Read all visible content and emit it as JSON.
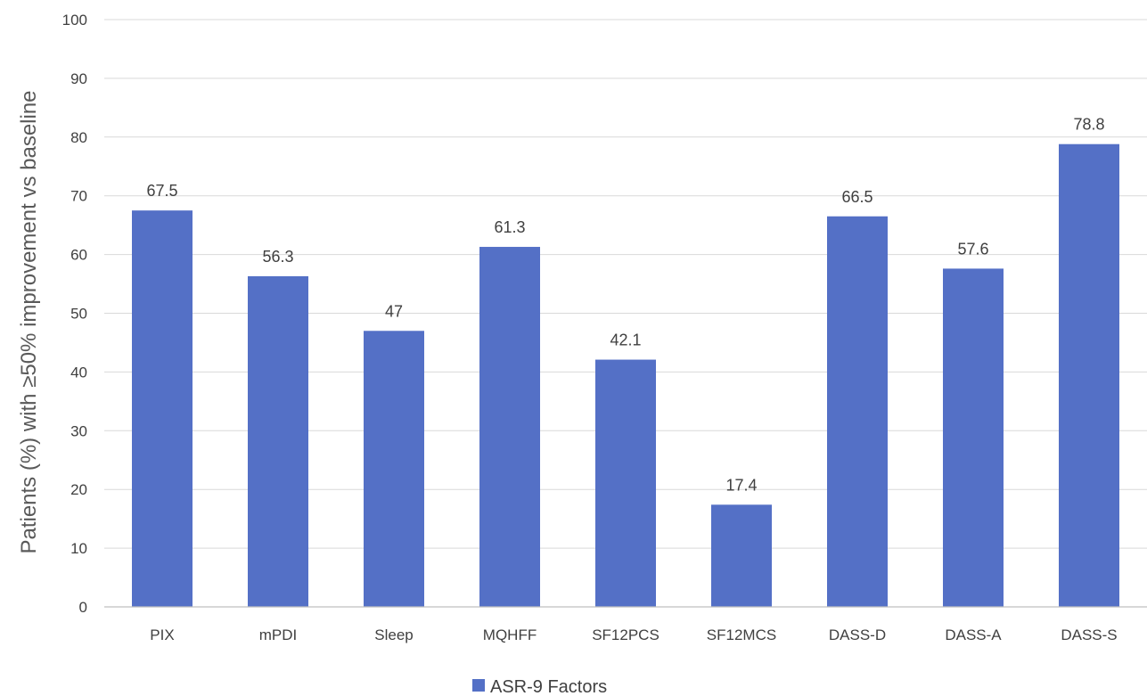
{
  "chart_data": {
    "type": "bar",
    "categories": [
      "PIX",
      "mPDI",
      "Sleep",
      "MQHFF",
      "SF12PCS",
      "SF12MCS",
      "DASS-D",
      "DASS-A",
      "DASS-S"
    ],
    "series": [
      {
        "name": "ASR-9 Factors",
        "values": [
          67.5,
          56.3,
          47,
          61.3,
          42.1,
          17.4,
          66.5,
          57.6,
          78.8
        ],
        "color": "#5470c6"
      }
    ],
    "data_labels": [
      "67.5",
      "56.3",
      "47",
      "61.3",
      "42.1",
      "17.4",
      "66.5",
      "57.6",
      "78.8"
    ],
    "title": "",
    "xlabel": "",
    "ylabel": "Patients (%) with ≥50% improvement vs baseline",
    "ylim": [
      0,
      100
    ],
    "yticks": [
      0,
      10,
      20,
      30,
      40,
      50,
      60,
      70,
      80,
      90,
      100
    ],
    "grid": true,
    "legend": "bottom"
  }
}
